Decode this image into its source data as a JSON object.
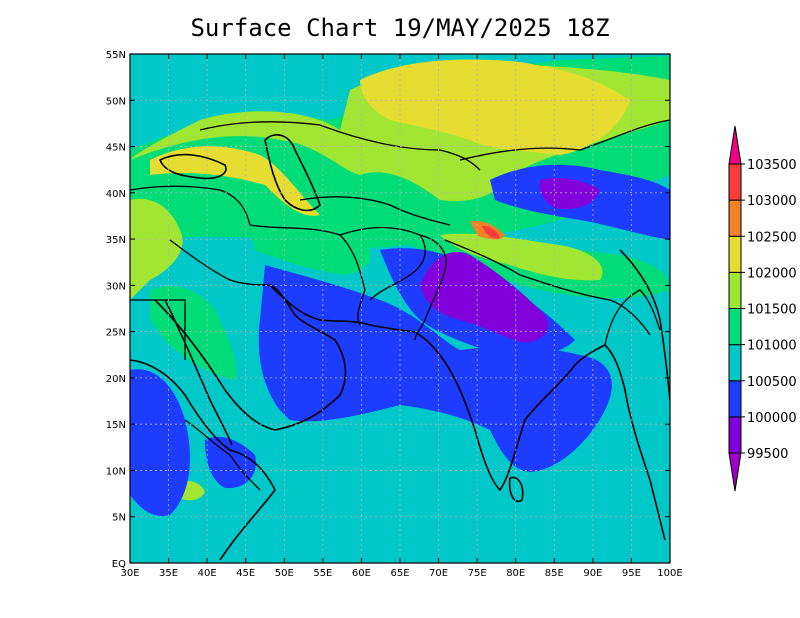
{
  "title": "Surface Chart 19/MAY/2025 18Z",
  "map": {
    "lon_labels": [
      "30E",
      "35E",
      "40E",
      "45E",
      "50E",
      "55E",
      "60E",
      "65E",
      "70E",
      "75E",
      "80E",
      "85E",
      "90E",
      "95E",
      "100E"
    ],
    "lat_labels": [
      "EQ",
      "5N",
      "10N",
      "15N",
      "20N",
      "25N",
      "30N",
      "35N",
      "40N",
      "45N",
      "50N",
      "55N"
    ],
    "lon_range": [
      30,
      100
    ],
    "lat_range": [
      0,
      55
    ],
    "grid": true,
    "field": "Surface pressure (Pa) shaded",
    "colorbar": {
      "levels": [
        "99500",
        "100000",
        "100500",
        "101000",
        "101500",
        "102000",
        "102500",
        "103000",
        "103500"
      ],
      "colors": [
        "#a000c8",
        "#8200dc",
        "#1e3cff",
        "#00c8c8",
        "#00dc78",
        "#a0e632",
        "#e6dc32",
        "#f08228",
        "#fa3c3c",
        "#f00082"
      ]
    }
  }
}
